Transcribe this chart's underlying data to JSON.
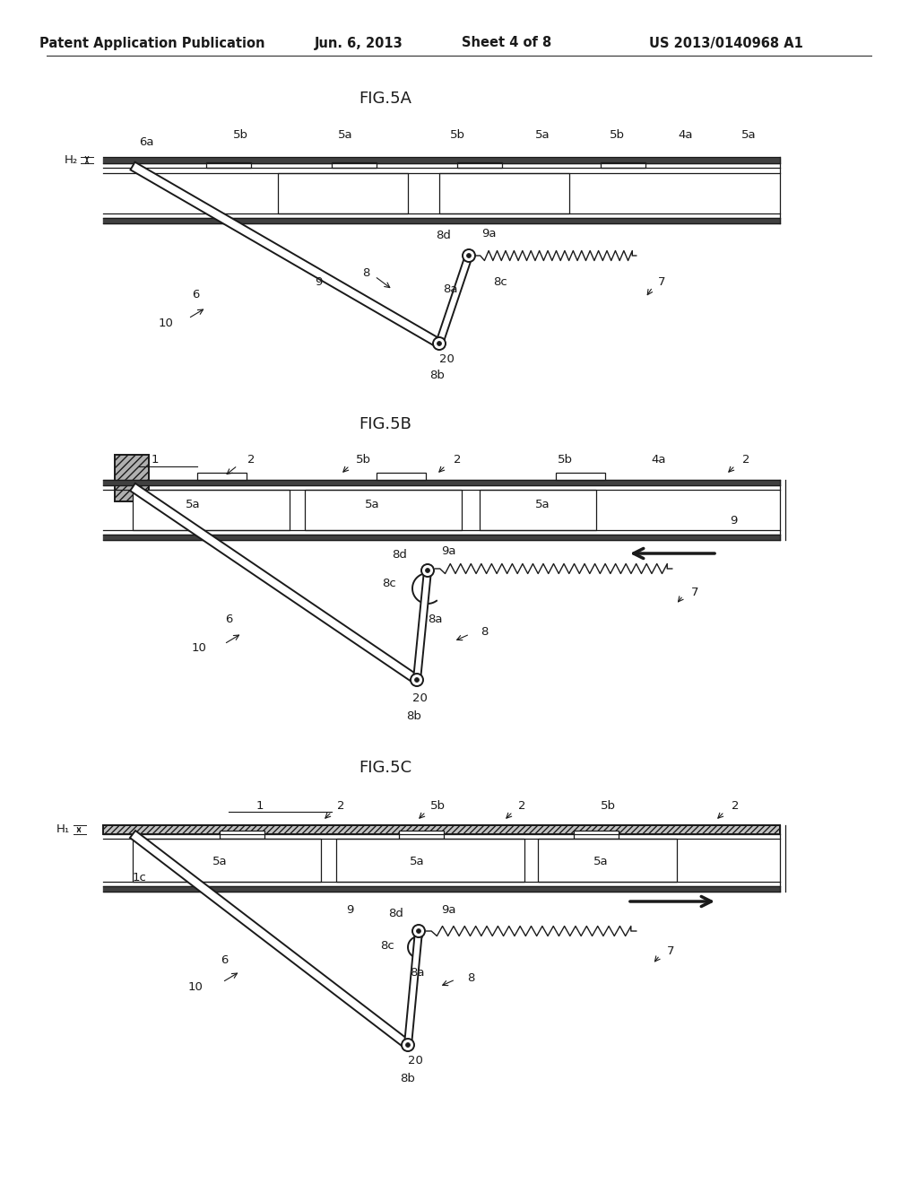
{
  "title_header": "Patent Application Publication",
  "date": "Jun. 6, 2013",
  "sheet": "Sheet 4 of 8",
  "patent_num": "US 2013/0140968 A1",
  "bg_color": "#ffffff",
  "line_color": "#1a1a1a",
  "header_fontsize": 10.5,
  "fig_title_fontsize": 13,
  "label_fontsize": 9.5
}
